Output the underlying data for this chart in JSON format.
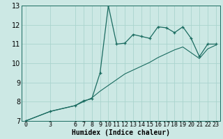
{
  "xlabel": "Humidex (Indice chaleur)",
  "bg_color": "#cce8e4",
  "line_color": "#1a6b60",
  "grid_color": "#aad4ce",
  "xlim": [
    -0.5,
    23.5
  ],
  "ylim": [
    7,
    13
  ],
  "xticks": [
    0,
    3,
    6,
    7,
    8,
    9,
    10,
    11,
    12,
    13,
    14,
    15,
    16,
    17,
    18,
    19,
    20,
    21,
    22,
    23
  ],
  "yticks": [
    7,
    8,
    9,
    10,
    11,
    12,
    13
  ],
  "curve1_x": [
    0,
    3,
    6,
    7,
    8,
    9,
    10,
    11,
    12,
    13,
    14,
    15,
    16,
    17,
    18,
    19,
    20,
    21,
    22,
    23
  ],
  "curve1_y": [
    7.0,
    7.5,
    7.8,
    8.05,
    8.15,
    9.5,
    13.0,
    11.0,
    11.05,
    11.5,
    11.4,
    11.3,
    11.9,
    11.85,
    11.6,
    11.9,
    11.3,
    10.35,
    11.0,
    11.0
  ],
  "curve2_x": [
    0,
    3,
    6,
    7,
    8,
    9,
    10,
    11,
    12,
    13,
    14,
    15,
    16,
    17,
    18,
    19,
    20,
    21,
    22,
    23
  ],
  "curve2_y": [
    7.0,
    7.5,
    7.8,
    8.0,
    8.2,
    8.55,
    8.85,
    9.15,
    9.45,
    9.65,
    9.85,
    10.05,
    10.3,
    10.5,
    10.7,
    10.85,
    10.55,
    10.25,
    10.75,
    10.95
  ],
  "xlabel_fontsize": 7,
  "tick_fontsize": 6,
  "figsize": [
    3.2,
    2.0
  ],
  "dpi": 100
}
